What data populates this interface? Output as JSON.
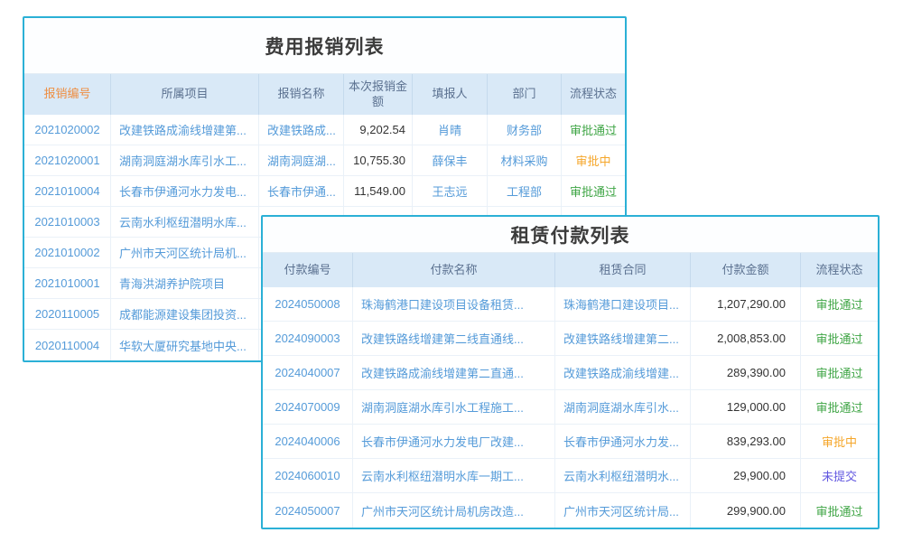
{
  "colors": {
    "table_border": "#2bb0d6",
    "header_bg": "#d9e9f7",
    "header_text": "#5b7190",
    "header_active_sort": "#ee8e42",
    "link_blue": "#559bd9",
    "amount_text": "#333333",
    "status_approved_green": "#3fa545",
    "status_pending_orange": "#f5a62a",
    "status_unsubmitted_purple": "#6257e0",
    "title_text": "#3c3c3c"
  },
  "expense_table": {
    "title": "费用报销列表",
    "columns": {
      "id": "报销编号",
      "project": "所属项目",
      "name": "报销名称",
      "amount": "本次报销金额",
      "submitter": "填报人",
      "department": "部门",
      "status": "流程状态"
    },
    "rows": [
      {
        "id": "2021020002",
        "project": "改建铁路成渝线增建第...",
        "name": "改建铁路成...",
        "amount": "9,202.54",
        "submitter": "肖晴",
        "department": "财务部",
        "status": "审批通过",
        "status_class": "st-green"
      },
      {
        "id": "2021020001",
        "project": "湖南洞庭湖水库引水工...",
        "name": "湖南洞庭湖...",
        "amount": "10,755.30",
        "submitter": "薛保丰",
        "department": "材料采购",
        "status": "审批中",
        "status_class": "st-orange"
      },
      {
        "id": "2021010004",
        "project": "长春市伊通河水力发电...",
        "name": "长春市伊通...",
        "amount": "11,549.00",
        "submitter": "王志远",
        "department": "工程部",
        "status": "审批通过",
        "status_class": "st-green"
      },
      {
        "id": "2021010003",
        "project": "云南水利枢纽潜明水库...",
        "name": "",
        "amount": "",
        "submitter": "",
        "department": "",
        "status": "",
        "status_class": ""
      },
      {
        "id": "2021010002",
        "project": "广州市天河区统计局机...",
        "name": "",
        "amount": "",
        "submitter": "",
        "department": "",
        "status": "",
        "status_class": ""
      },
      {
        "id": "2021010001",
        "project": "青海洪湖养护院项目",
        "name": "",
        "amount": "",
        "submitter": "",
        "department": "",
        "status": "",
        "status_class": ""
      },
      {
        "id": "2020110005",
        "project": "成都能源建设集团投资...",
        "name": "",
        "amount": "",
        "submitter": "",
        "department": "",
        "status": "",
        "status_class": ""
      },
      {
        "id": "2020110004",
        "project": "华软大厦研究基地中央...",
        "name": "",
        "amount": "",
        "submitter": "",
        "department": "",
        "status": "",
        "status_class": ""
      }
    ]
  },
  "rental_table": {
    "title": "租赁付款列表",
    "columns": {
      "id": "付款编号",
      "name": "付款名称",
      "contract": "租赁合同",
      "amount": "付款金额",
      "status": "流程状态"
    },
    "rows": [
      {
        "id": "2024050008",
        "name": "珠海鹤港口建设项目设备租赁...",
        "contract": "珠海鹤港口建设项目...",
        "amount": "1,207,290.00",
        "status": "审批通过",
        "status_class": "st-green"
      },
      {
        "id": "2024090003",
        "name": "改建铁路线增建第二线直通线...",
        "contract": "改建铁路线增建第二...",
        "amount": "2,008,853.00",
        "status": "审批通过",
        "status_class": "st-green"
      },
      {
        "id": "2024040007",
        "name": "改建铁路成渝线增建第二直通...",
        "contract": "改建铁路成渝线增建...",
        "amount": "289,390.00",
        "status": "审批通过",
        "status_class": "st-green"
      },
      {
        "id": "2024070009",
        "name": "湖南洞庭湖水库引水工程施工...",
        "contract": "湖南洞庭湖水库引水...",
        "amount": "129,000.00",
        "status": "审批通过",
        "status_class": "st-green"
      },
      {
        "id": "2024040006",
        "name": "长春市伊通河水力发电厂改建...",
        "contract": "长春市伊通河水力发...",
        "amount": "839,293.00",
        "status": "审批中",
        "status_class": "st-orange"
      },
      {
        "id": "2024060010",
        "name": "云南水利枢纽潜明水库一期工...",
        "contract": "云南水利枢纽潜明水...",
        "amount": "29,900.00",
        "status": "未提交",
        "status_class": "st-purple"
      },
      {
        "id": "2024050007",
        "name": "广州市天河区统计局机房改造...",
        "contract": "广州市天河区统计局...",
        "amount": "299,900.00",
        "status": "审批通过",
        "status_class": "st-green"
      }
    ]
  }
}
